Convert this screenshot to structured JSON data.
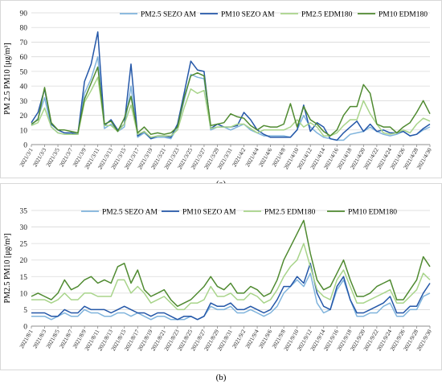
{
  "colors": {
    "pm25_sezo": "#7fb3dc",
    "pm10_sezo": "#2457a8",
    "pm25_edm": "#a8d48a",
    "pm10_edm": "#4f8a30",
    "grid": "#d9d9d9",
    "axis": "#8c8c8c"
  },
  "labels": {
    "panel_a": "(a)",
    "panel_b": "(b)"
  },
  "chart_data": [
    {
      "type": "line",
      "ylabel": "PM 2.5 PM10 [μg/m³]",
      "ylim": [
        0,
        90
      ],
      "yticks": [
        0,
        10,
        20,
        30,
        40,
        50,
        60,
        70,
        80,
        90
      ],
      "grid": true,
      "legend": "top-right",
      "x": [
        "2021/3/1",
        "2021/3/2",
        "2021/3/3",
        "2021/3/4",
        "2021/3/5",
        "2021/3/6",
        "2021/3/7",
        "2021/3/8",
        "2021/3/9",
        "2021/3/10",
        "2021/3/11",
        "2021/3/12",
        "2021/3/13",
        "2021/3/14",
        "2021/3/15",
        "2021/3/16",
        "2021/3/17",
        "2021/3/18",
        "2021/3/19",
        "2021/3/20",
        "2021/3/21",
        "2021/3/22",
        "2021/3/23",
        "2021/3/24",
        "2021/3/25",
        "2021/3/26",
        "2021/3/27",
        "2021/3/28",
        "2021/3/29",
        "2021/3/30",
        "2021/3/31",
        "2021/4/1",
        "2021/4/2",
        "2021/4/3",
        "2021/4/4",
        "2021/4/5",
        "2021/4/6",
        "2021/4/7",
        "2021/4/8",
        "2021/4/9",
        "2021/4/10",
        "2021/4/11",
        "2021/4/12",
        "2021/4/13",
        "2021/4/14",
        "2021/4/15",
        "2021/4/16",
        "2021/4/17",
        "2021/4/18",
        "2021/4/19",
        "2021/4/20",
        "2021/4/21",
        "2021/4/22",
        "2021/4/23",
        "2021/4/24",
        "2021/4/25",
        "2021/4/26",
        "2021/4/27",
        "2021/4/28",
        "2021/4/29",
        "2021/4/30"
      ],
      "xtick_labels": [
        "2021/3/1",
        "2021/3/3",
        "2021/3/5",
        "2021/3/7",
        "2021/3/9",
        "2021/3/11",
        "2021/3/13",
        "2021/3/15",
        "2021/3/17",
        "2021/3/19",
        "2021/3/21",
        "2021/3/23",
        "2021/3/25",
        "2021/3/27",
        "2021/3/29",
        "2021/3/31",
        "2021/4/2",
        "2021/4/4",
        "2021/4/6",
        "2021/4/8",
        "2021/4/10",
        "2021/4/12",
        "2021/4/14",
        "2021/4/16",
        "2021/4/18",
        "2021/4/20",
        "2021/4/22",
        "2021/4/24",
        "2021/4/26",
        "2021/4/28",
        "2021/4/30"
      ],
      "series": [
        {
          "name": "PM2.5 SEZO AM",
          "color_key": "pm25_sezo",
          "values": [
            13,
            18,
            32,
            12,
            8,
            7,
            8,
            7,
            35,
            45,
            60,
            11,
            14,
            9,
            12,
            40,
            5,
            8,
            4,
            5,
            5,
            4,
            12,
            30,
            48,
            46,
            45,
            10,
            12,
            12,
            10,
            12,
            14,
            10,
            8,
            6,
            6,
            6,
            6,
            5,
            10,
            20,
            12,
            8,
            5,
            4,
            3,
            3,
            7,
            8,
            9,
            12,
            9,
            7,
            6,
            7,
            9,
            6,
            7,
            10,
            12
          ]
        },
        {
          "name": "PM10 SEZO AM",
          "color_key": "pm10_sezo",
          "values": [
            15,
            22,
            38,
            14,
            10,
            8,
            8,
            7,
            43,
            55,
            77,
            13,
            17,
            10,
            14,
            55,
            6,
            9,
            4,
            6,
            6,
            5,
            14,
            35,
            57,
            51,
            50,
            11,
            14,
            12,
            12,
            13,
            22,
            17,
            10,
            7,
            5,
            5,
            5,
            5,
            10,
            27,
            9,
            15,
            12,
            4,
            3,
            8,
            12,
            16,
            9,
            14,
            9,
            10,
            8,
            8,
            9,
            6,
            7,
            11,
            14
          ]
        },
        {
          "name": "PM2.5 EDM180",
          "color_key": "pm25_edm",
          "values": [
            13,
            15,
            25,
            12,
            8,
            7,
            7,
            7,
            29,
            37,
            46,
            13,
            13,
            9,
            14,
            27,
            7,
            9,
            5,
            6,
            6,
            6,
            10,
            25,
            38,
            35,
            37,
            11,
            12,
            12,
            12,
            14,
            14,
            11,
            8,
            10,
            10,
            10,
            10,
            12,
            17,
            12,
            15,
            12,
            6,
            6,
            8,
            13,
            17,
            17,
            30,
            21,
            14,
            8,
            7,
            8,
            10,
            8,
            14,
            18,
            16
          ]
        },
        {
          "name": "PM10 EDM180",
          "color_key": "pm10_edm",
          "values": [
            14,
            17,
            39,
            15,
            10,
            10,
            9,
            8,
            31,
            42,
            53,
            14,
            16,
            9,
            18,
            33,
            8,
            12,
            7,
            8,
            7,
            8,
            12,
            32,
            47,
            49,
            47,
            13,
            14,
            15,
            21,
            19,
            18,
            13,
            10,
            13,
            12,
            12,
            14,
            28,
            12,
            26,
            17,
            14,
            9,
            6,
            10,
            20,
            26,
            26,
            41,
            35,
            14,
            12,
            12,
            8,
            12,
            15,
            22,
            30,
            21
          ]
        }
      ]
    },
    {
      "type": "line",
      "ylabel": "PM2.5 PM10 [μg/m³]",
      "ylim": [
        0,
        35
      ],
      "yticks": [
        0,
        5,
        10,
        15,
        20,
        25,
        30,
        35
      ],
      "grid": true,
      "legend": "top-right",
      "x": [
        "2021/8/1",
        "2021/8/2",
        "2021/8/3",
        "2021/8/4",
        "2021/8/5",
        "2021/8/6",
        "2021/8/7",
        "2021/8/8",
        "2021/8/9",
        "2021/8/10",
        "2021/8/11",
        "2021/8/12",
        "2021/8/13",
        "2021/8/14",
        "2021/8/15",
        "2021/8/16",
        "2021/8/17",
        "2021/8/18",
        "2021/8/19",
        "2021/8/20",
        "2021/8/21",
        "2021/8/22",
        "2021/8/23",
        "2021/8/24",
        "2021/8/25",
        "2021/8/26",
        "2021/8/27",
        "2021/8/28",
        "2021/8/29",
        "2021/8/30",
        "2021/8/31",
        "2021/9/1",
        "2021/9/2",
        "2021/9/3",
        "2021/9/4",
        "2021/9/5",
        "2021/9/6",
        "2021/9/7",
        "2021/9/8",
        "2021/9/9",
        "2021/9/10",
        "2021/9/11",
        "2021/9/12",
        "2021/9/13",
        "2021/9/14",
        "2021/9/15",
        "2021/9/16",
        "2021/9/17",
        "2021/9/18",
        "2021/9/19",
        "2021/9/20",
        "2021/9/21",
        "2021/9/22",
        "2021/9/23",
        "2021/9/24",
        "2021/9/25",
        "2021/9/26",
        "2021/9/27",
        "2021/9/28",
        "2021/9/29",
        "2021/9/30"
      ],
      "xtick_labels": [
        "2021/8/1",
        "2021/8/3",
        "2021/8/5",
        "2021/8/7",
        "2021/8/9",
        "2021/8/11",
        "2021/8/13",
        "2021/8/15",
        "2021/8/17",
        "2021/8/19",
        "2021/8/21",
        "2021/8/23",
        "2021/8/25",
        "2021/8/27",
        "2021/8/29",
        "2021/8/31",
        "2021/9/2",
        "2021/9/4",
        "2021/9/6",
        "2021/9/8",
        "2021/9/10",
        "2021/9/12",
        "2021/9/14",
        "2021/9/16",
        "2021/9/18",
        "2021/9/20",
        "2021/9/22",
        "2021/9/24",
        "2021/9/26",
        "2021/9/28",
        "2021/9/30"
      ],
      "series": [
        {
          "name": "PM2.5 SEZO AM",
          "color_key": "pm25_sezo",
          "values": [
            3,
            3,
            3,
            2,
            3,
            4,
            3,
            3,
            5,
            4,
            4,
            3,
            3,
            4,
            4,
            3,
            4,
            3,
            2,
            3,
            3,
            2,
            2,
            2,
            3,
            2,
            3,
            6,
            5,
            5,
            6,
            4,
            4,
            5,
            4,
            3,
            4,
            6,
            10,
            12,
            14,
            12,
            16,
            7,
            4,
            5,
            11,
            14,
            8,
            3,
            3,
            4,
            4,
            6,
            7,
            3,
            3,
            5,
            5,
            9,
            10
          ]
        },
        {
          "name": "PM10 SEZO AM",
          "color_key": "pm10_sezo",
          "values": [
            4,
            4,
            4,
            3,
            3,
            5,
            4,
            4,
            6,
            5,
            5,
            5,
            4,
            5,
            6,
            5,
            4,
            4,
            3,
            4,
            4,
            3,
            2,
            3,
            3,
            2,
            3,
            7,
            6,
            6,
            7,
            5,
            5,
            6,
            5,
            4,
            5,
            8,
            12,
            12,
            15,
            13,
            19,
            10,
            6,
            5,
            12,
            15,
            8,
            4,
            4,
            5,
            6,
            7,
            9,
            4,
            4,
            6,
            6,
            10,
            13
          ]
        },
        {
          "name": "PM2.5 EDM180",
          "color_key": "pm25_edm",
          "values": [
            8,
            8,
            8,
            7,
            8,
            10,
            8,
            8,
            10,
            10,
            9,
            9,
            9,
            14,
            14,
            10,
            12,
            10,
            7,
            8,
            9,
            7,
            5,
            5,
            7,
            7,
            8,
            12,
            9,
            9,
            10,
            8,
            8,
            10,
            9,
            7,
            8,
            11,
            15,
            18,
            20,
            25,
            18,
            11,
            9,
            8,
            14,
            17,
            12,
            7,
            7,
            8,
            9,
            10,
            11,
            7,
            7,
            9,
            11,
            16,
            14
          ]
        },
        {
          "name": "PM10 EDM180",
          "color_key": "pm10_edm",
          "values": [
            9,
            10,
            9,
            8,
            10,
            14,
            11,
            12,
            14,
            15,
            13,
            14,
            13,
            18,
            19,
            13,
            17,
            11,
            9,
            10,
            11,
            8,
            6,
            7,
            8,
            10,
            12,
            15,
            12,
            11,
            13,
            10,
            10,
            12,
            11,
            9,
            10,
            14,
            20,
            24,
            28,
            32,
            22,
            14,
            11,
            12,
            16,
            20,
            14,
            9,
            9,
            10,
            12,
            13,
            14,
            8,
            8,
            11,
            14,
            21,
            18
          ]
        }
      ]
    }
  ]
}
